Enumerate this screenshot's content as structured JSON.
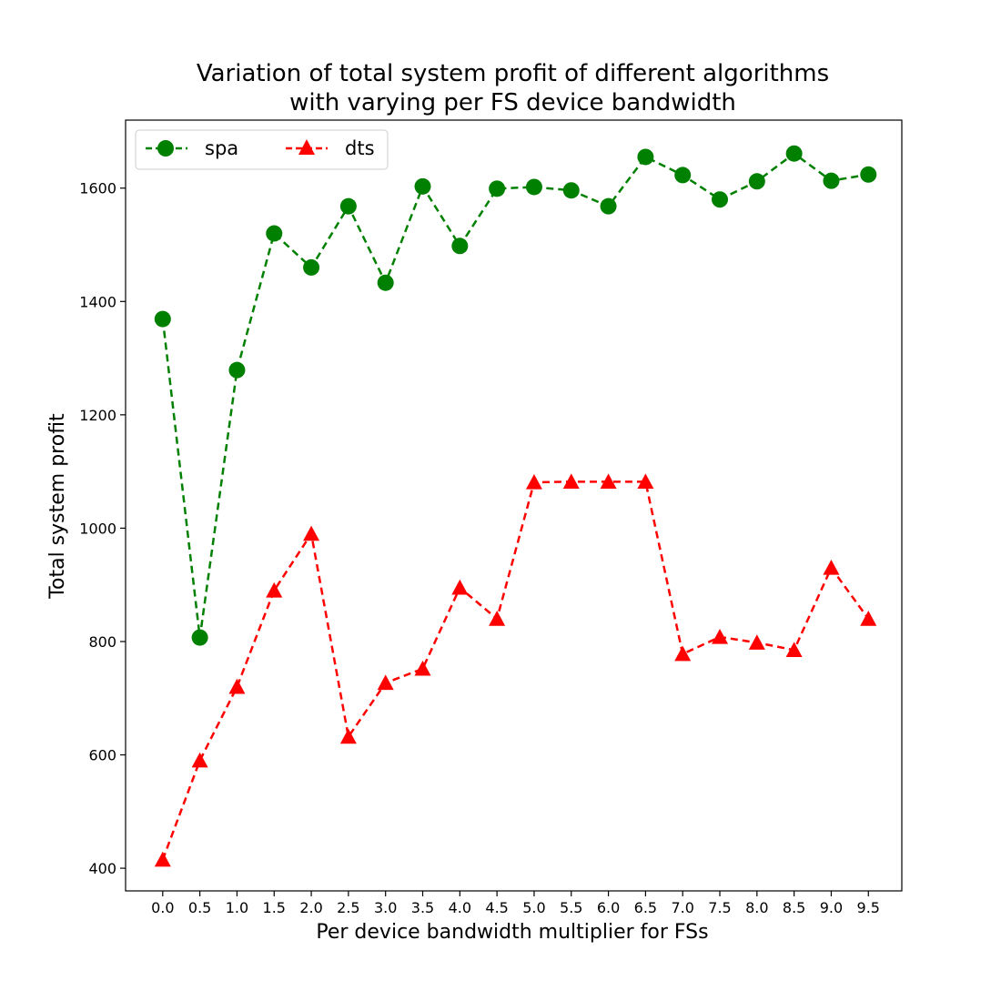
{
  "chart_data": {
    "type": "line",
    "title_lines": [
      "Variation of total system profit of different algorithms",
      "with varying per FS device bandwidth"
    ],
    "xlabel": "Per device bandwidth multiplier for FSs",
    "ylabel": "Total system profit",
    "x": [
      0.0,
      0.5,
      1.0,
      1.5,
      2.0,
      2.5,
      3.0,
      3.5,
      4.0,
      4.5,
      5.0,
      5.5,
      6.0,
      6.5,
      7.0,
      7.5,
      8.0,
      8.5,
      9.0,
      9.5
    ],
    "x_tick_labels": [
      "0.0",
      "0.5",
      "1.0",
      "1.5",
      "2.0",
      "2.5",
      "3.0",
      "3.5",
      "4.0",
      "4.5",
      "5.0",
      "5.5",
      "6.0",
      "6.5",
      "7.0",
      "7.5",
      "8.0",
      "8.5",
      "9.0",
      "9.5"
    ],
    "y_ticks": [
      400,
      600,
      800,
      1000,
      1200,
      1400,
      1600
    ],
    "xlim": [
      -0.5,
      9.95
    ],
    "ylim": [
      360,
      1720
    ],
    "grid": false,
    "legend_position": "top-left",
    "series": [
      {
        "name": "spa",
        "color": "#008000",
        "marker": "circle",
        "line_style": "dashed",
        "values": [
          1369,
          807,
          1279,
          1520,
          1460,
          1568,
          1433,
          1603,
          1498,
          1599,
          1602,
          1596,
          1568,
          1655,
          1623,
          1580,
          1612,
          1661,
          1613,
          1624
        ]
      },
      {
        "name": "dts",
        "color": "#ff0000",
        "marker": "triangle-up",
        "line_style": "dashed",
        "values": [
          415,
          590,
          720,
          890,
          990,
          632,
          727,
          752,
          895,
          840,
          1081,
          1082,
          1082,
          1082,
          778,
          808,
          798,
          785,
          930,
          840
        ]
      }
    ]
  }
}
